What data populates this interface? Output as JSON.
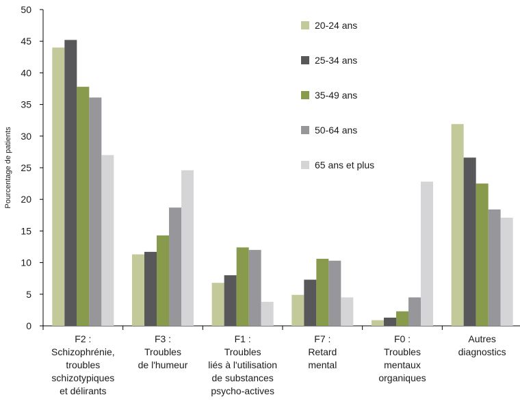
{
  "chart_data": {
    "type": "bar",
    "title": "",
    "xlabel": "",
    "ylabel": "Pourcentage de patients",
    "ylim": [
      0,
      50
    ],
    "yticks": [
      0,
      5,
      10,
      15,
      20,
      25,
      30,
      35,
      40,
      45,
      50
    ],
    "grid": false,
    "legend_position": "top-right",
    "categories": [
      [
        "F2 :",
        "Schizophrénie,",
        "troubles",
        "schizotypiques",
        "et délirants"
      ],
      [
        "F3 :",
        "Troubles",
        "de l'humeur"
      ],
      [
        "F1 :",
        "Troubles",
        "liés à l'utilisation",
        "de substances",
        "psycho-actives"
      ],
      [
        "F7 :",
        "Retard",
        "mental"
      ],
      [
        "F0 :",
        "Troubles",
        "mentaux",
        "organiques"
      ],
      [
        "Autres",
        "diagnostics"
      ]
    ],
    "series": [
      {
        "name": "20-24 ans",
        "color": "#c4c99a",
        "values": [
          44.0,
          11.3,
          6.8,
          4.9,
          0.9,
          31.9
        ]
      },
      {
        "name": "25-34 ans",
        "color": "#58585a",
        "values": [
          45.2,
          11.7,
          8.0,
          7.3,
          1.3,
          26.6
        ]
      },
      {
        "name": "35-49 ans",
        "color": "#889a4b",
        "values": [
          37.8,
          14.3,
          12.4,
          10.6,
          2.3,
          22.5
        ]
      },
      {
        "name": "50-64 ans",
        "color": "#97979b",
        "values": [
          36.1,
          18.7,
          12.0,
          10.3,
          4.5,
          18.4
        ]
      },
      {
        "name": "65 ans et plus",
        "color": "#d5d5d7",
        "values": [
          27.0,
          24.6,
          3.8,
          4.5,
          22.8,
          17.1
        ]
      }
    ]
  }
}
